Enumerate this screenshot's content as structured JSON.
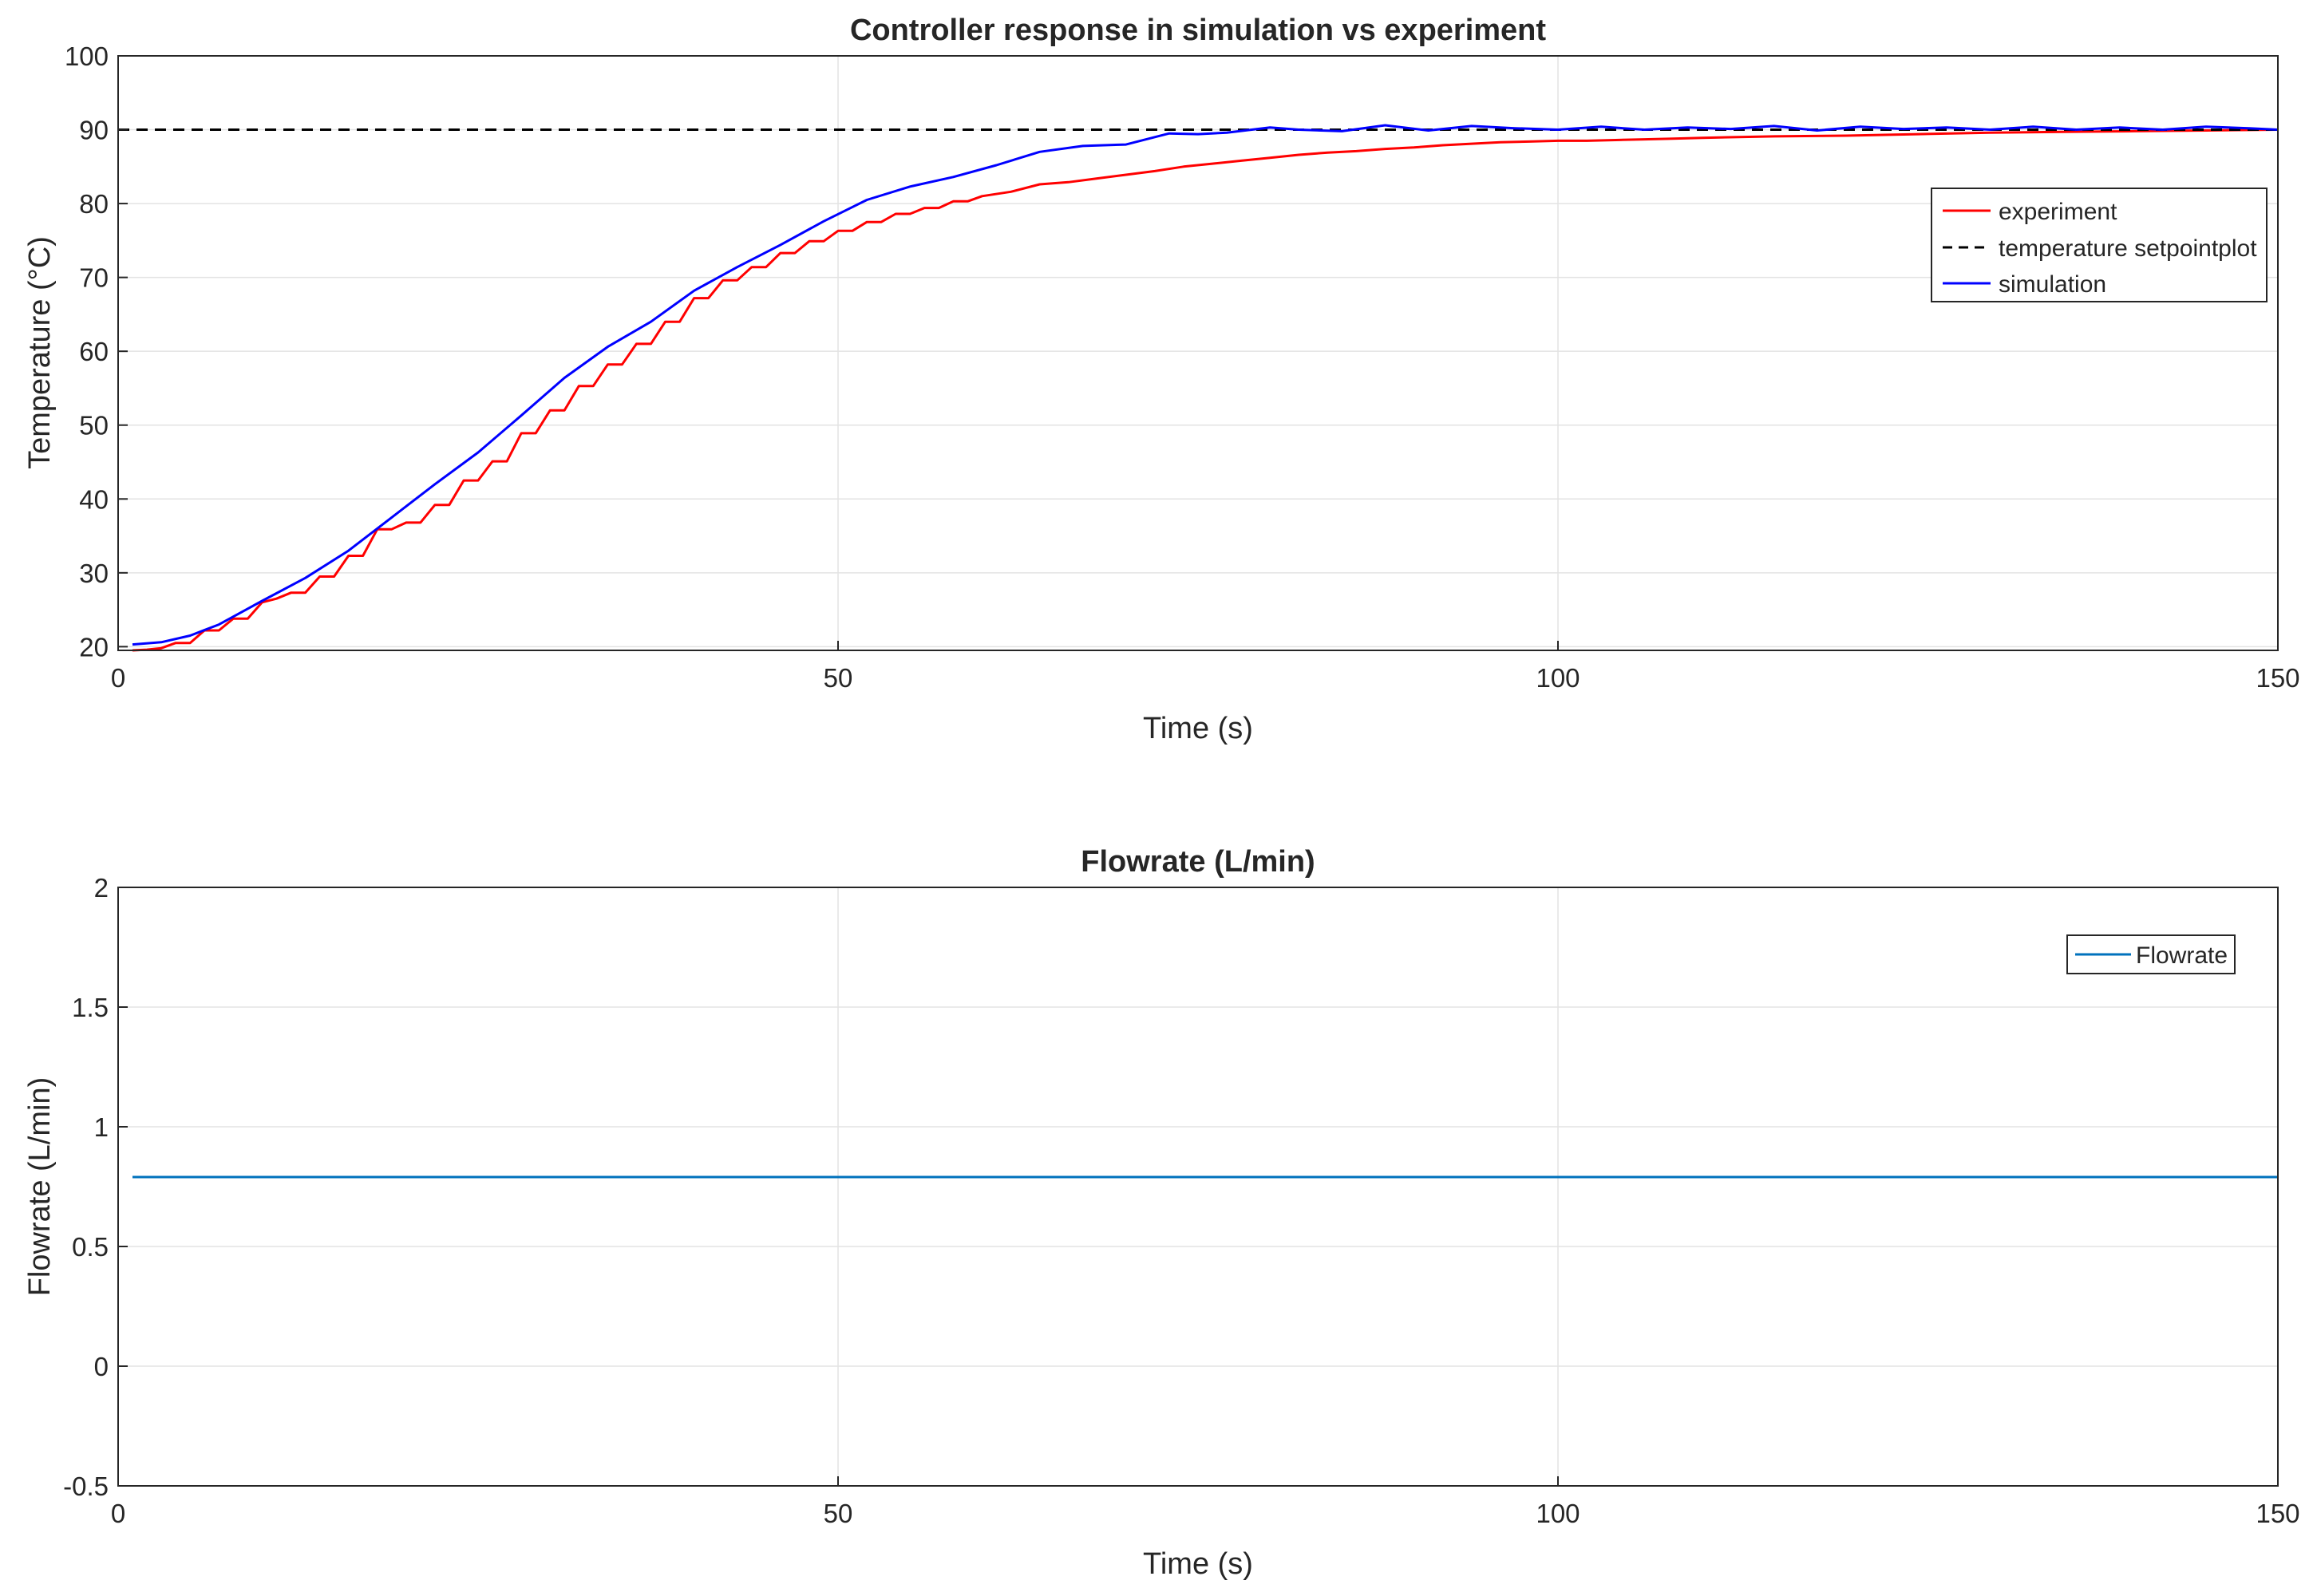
{
  "colors": {
    "experiment": "#ff0000",
    "setpoint": "#000000",
    "simulation": "#0000ff",
    "flowrate": "#0072bd",
    "grid": "#e3e3e3",
    "axis": "#262626"
  },
  "chart_data": [
    {
      "type": "line",
      "title": "Controller response in simulation vs experiment",
      "xlabel": "Time (s)",
      "ylabel": "Temperature (°C)",
      "xlim": [
        0,
        150
      ],
      "ylim": [
        19.5,
        100
      ],
      "xticks": [
        0,
        50,
        100,
        150
      ],
      "yticks": [
        20,
        30,
        40,
        50,
        60,
        70,
        80,
        90,
        100
      ],
      "grid": true,
      "legend_location": "right",
      "series": [
        {
          "name": "experiment",
          "style": "solid",
          "color": "#ff0000",
          "x": [
            1,
            2,
            3,
            4,
            5,
            6,
            7,
            8,
            9,
            10,
            11,
            12,
            13,
            14,
            15,
            16,
            17,
            18,
            19,
            20,
            21,
            22,
            23,
            24,
            25,
            26,
            27,
            28,
            29,
            30,
            31,
            32,
            33,
            34,
            35,
            36,
            37,
            38,
            39,
            40,
            41,
            42,
            43,
            44,
            45,
            46,
            47,
            48,
            49,
            50,
            51,
            52,
            53,
            54,
            55,
            56,
            57,
            58,
            59,
            60,
            62,
            64,
            66,
            68,
            70,
            72,
            74,
            76,
            78,
            80,
            82,
            84,
            86,
            88,
            90,
            92,
            94,
            96,
            98,
            100,
            102,
            104,
            106,
            108,
            110,
            115,
            120,
            125,
            130,
            135,
            140,
            145,
            150
          ],
          "y": [
            19.5,
            19.6,
            19.8,
            20.5,
            20.5,
            22.2,
            22.2,
            23.8,
            23.8,
            26.0,
            26.5,
            27.3,
            27.3,
            29.5,
            29.5,
            32.3,
            32.3,
            35.9,
            35.9,
            36.8,
            36.8,
            39.2,
            39.2,
            42.5,
            42.5,
            45.1,
            45.1,
            48.9,
            48.9,
            52.0,
            52.0,
            55.3,
            55.3,
            58.2,
            58.2,
            61.0,
            61.0,
            64.0,
            64.0,
            67.2,
            67.2,
            69.6,
            69.6,
            71.4,
            71.4,
            73.3,
            73.3,
            74.9,
            74.9,
            76.3,
            76.3,
            77.5,
            77.5,
            78.6,
            78.6,
            79.4,
            79.4,
            80.3,
            80.3,
            81.0,
            81.6,
            82.6,
            82.9,
            83.4,
            83.9,
            84.4,
            85.0,
            85.4,
            85.8,
            86.2,
            86.6,
            86.9,
            87.1,
            87.4,
            87.6,
            87.9,
            88.1,
            88.3,
            88.4,
            88.5,
            88.5,
            88.6,
            88.7,
            88.8,
            88.9,
            89.1,
            89.2,
            89.4,
            89.6,
            89.7,
            89.8,
            89.9,
            90.0
          ]
        },
        {
          "name": "temperature setpointplot",
          "style": "dashed",
          "color": "#000000",
          "x": [
            0,
            150
          ],
          "y": [
            90,
            90
          ]
        },
        {
          "name": "simulation",
          "style": "solid",
          "color": "#0000ff",
          "x": [
            1,
            3,
            5,
            7,
            10,
            13,
            16,
            19,
            22,
            25,
            28,
            31,
            34,
            37,
            40,
            43,
            46,
            49,
            52,
            55,
            58,
            61,
            64,
            67,
            70,
            73,
            75,
            77,
            80,
            82,
            85,
            88,
            91,
            94,
            97,
            100,
            103,
            106,
            109,
            112,
            115,
            118,
            121,
            124,
            127,
            130,
            133,
            136,
            139,
            142,
            145,
            148,
            150
          ],
          "y": [
            20.3,
            20.6,
            21.5,
            23.0,
            26.2,
            29.3,
            33.0,
            37.5,
            42.0,
            46.3,
            51.3,
            56.4,
            60.6,
            64.0,
            68.2,
            71.4,
            74.4,
            77.6,
            80.5,
            82.3,
            83.6,
            85.2,
            87.0,
            87.8,
            88.0,
            89.5,
            89.4,
            89.6,
            90.3,
            90.0,
            89.8,
            90.6,
            89.9,
            90.5,
            90.2,
            90.0,
            90.4,
            90.0,
            90.3,
            90.1,
            90.5,
            89.9,
            90.4,
            90.1,
            90.3,
            90.0,
            90.4,
            90.0,
            90.3,
            90.0,
            90.4,
            90.2,
            90.0
          ]
        }
      ]
    },
    {
      "type": "line",
      "title": "Flowrate (L/min)",
      "xlabel": "Time (s)",
      "ylabel": "Flowrate (L/min)",
      "xlim": [
        0,
        150
      ],
      "ylim": [
        -0.5,
        2
      ],
      "xticks": [
        0,
        50,
        100,
        150
      ],
      "yticks": [
        -0.5,
        0,
        0.5,
        1,
        1.5,
        2
      ],
      "grid": true,
      "legend_location": "top-right",
      "series": [
        {
          "name": "Flowrate",
          "style": "solid",
          "color": "#0072bd",
          "x": [
            1,
            150
          ],
          "y": [
            0.79,
            0.79
          ]
        }
      ]
    }
  ]
}
